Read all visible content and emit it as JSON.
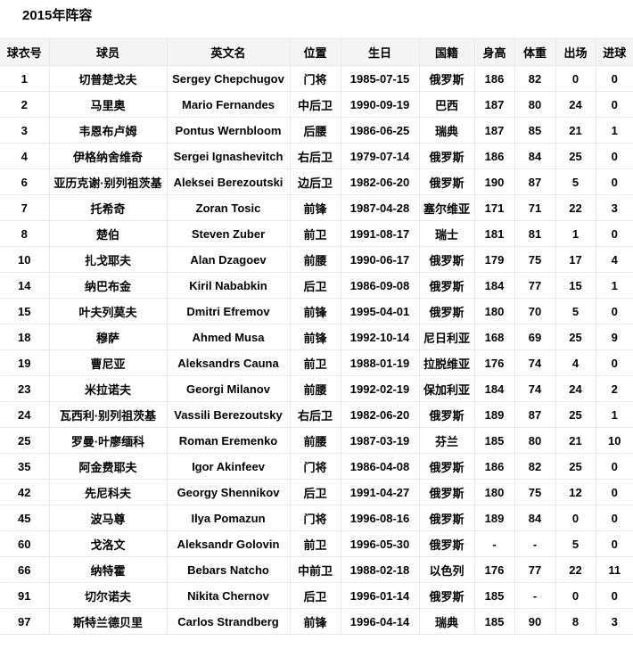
{
  "title": "2015年阵容",
  "colors": {
    "header_background": "#f4f4f4",
    "border": "#e8e8e8",
    "text": "#000000",
    "page_background": "#ffffff"
  },
  "table": {
    "columns": [
      {
        "key": "number",
        "label": "球衣号"
      },
      {
        "key": "player",
        "label": "球员"
      },
      {
        "key": "english_name",
        "label": "英文名"
      },
      {
        "key": "position",
        "label": "位置"
      },
      {
        "key": "birthday",
        "label": "生日"
      },
      {
        "key": "nationality",
        "label": "国籍"
      },
      {
        "key": "height",
        "label": "身高"
      },
      {
        "key": "weight",
        "label": "体重"
      },
      {
        "key": "appearances",
        "label": "出场"
      },
      {
        "key": "goals",
        "label": "进球"
      }
    ],
    "rows": [
      {
        "number": "1",
        "player": "切普楚戈夫",
        "english_name": "Sergey Chepchugov",
        "position": "门将",
        "birthday": "1985-07-15",
        "nationality": "俄罗斯",
        "height": "186",
        "weight": "82",
        "appearances": "0",
        "goals": "0"
      },
      {
        "number": "2",
        "player": "马里奥",
        "english_name": "Mario Fernandes",
        "position": "中后卫",
        "birthday": "1990-09-19",
        "nationality": "巴西",
        "height": "187",
        "weight": "80",
        "appearances": "24",
        "goals": "0"
      },
      {
        "number": "3",
        "player": "韦恩布卢姆",
        "english_name": "Pontus Wernbloom",
        "position": "后腰",
        "birthday": "1986-06-25",
        "nationality": "瑞典",
        "height": "187",
        "weight": "85",
        "appearances": "21",
        "goals": "1"
      },
      {
        "number": "4",
        "player": "伊格纳舍维奇",
        "english_name": "Sergei Ignashevitch",
        "position": "右后卫",
        "birthday": "1979-07-14",
        "nationality": "俄罗斯",
        "height": "186",
        "weight": "84",
        "appearances": "25",
        "goals": "0"
      },
      {
        "number": "6",
        "player": "亚历克谢·别列祖茨基",
        "english_name": "Aleksei Berezoutski",
        "position": "边后卫",
        "birthday": "1982-06-20",
        "nationality": "俄罗斯",
        "height": "190",
        "weight": "87",
        "appearances": "5",
        "goals": "0"
      },
      {
        "number": "7",
        "player": "托希奇",
        "english_name": "Zoran Tosic",
        "position": "前锋",
        "birthday": "1987-04-28",
        "nationality": "塞尔维亚",
        "height": "171",
        "weight": "71",
        "appearances": "22",
        "goals": "3"
      },
      {
        "number": "8",
        "player": "楚伯",
        "english_name": "Steven Zuber",
        "position": "前卫",
        "birthday": "1991-08-17",
        "nationality": "瑞士",
        "height": "181",
        "weight": "81",
        "appearances": "1",
        "goals": "0"
      },
      {
        "number": "10",
        "player": "扎戈耶夫",
        "english_name": "Alan Dzagoev",
        "position": "前腰",
        "birthday": "1990-06-17",
        "nationality": "俄罗斯",
        "height": "179",
        "weight": "75",
        "appearances": "17",
        "goals": "4"
      },
      {
        "number": "14",
        "player": "纳巴布金",
        "english_name": "Kiril Nababkin",
        "position": "后卫",
        "birthday": "1986-09-08",
        "nationality": "俄罗斯",
        "height": "184",
        "weight": "77",
        "appearances": "15",
        "goals": "1"
      },
      {
        "number": "15",
        "player": "叶夫列莫夫",
        "english_name": "Dmitri Efremov",
        "position": "前锋",
        "birthday": "1995-04-01",
        "nationality": "俄罗斯",
        "height": "180",
        "weight": "70",
        "appearances": "5",
        "goals": "0"
      },
      {
        "number": "18",
        "player": "穆萨",
        "english_name": "Ahmed Musa",
        "position": "前锋",
        "birthday": "1992-10-14",
        "nationality": "尼日利亚",
        "height": "168",
        "weight": "69",
        "appearances": "25",
        "goals": "9"
      },
      {
        "number": "19",
        "player": "曹尼亚",
        "english_name": "Aleksandrs Cauna",
        "position": "前卫",
        "birthday": "1988-01-19",
        "nationality": "拉脱维亚",
        "height": "176",
        "weight": "74",
        "appearances": "4",
        "goals": "0"
      },
      {
        "number": "23",
        "player": "米拉诺夫",
        "english_name": "Georgi Milanov",
        "position": "前腰",
        "birthday": "1992-02-19",
        "nationality": "保加利亚",
        "height": "184",
        "weight": "74",
        "appearances": "24",
        "goals": "2"
      },
      {
        "number": "24",
        "player": "瓦西利·别列祖茨基",
        "english_name": "Vassili Berezoutsky",
        "position": "右后卫",
        "birthday": "1982-06-20",
        "nationality": "俄罗斯",
        "height": "189",
        "weight": "87",
        "appearances": "25",
        "goals": "1"
      },
      {
        "number": "25",
        "player": "罗曼·叶廖缅科",
        "english_name": "Roman Eremenko",
        "position": "前腰",
        "birthday": "1987-03-19",
        "nationality": "芬兰",
        "height": "185",
        "weight": "80",
        "appearances": "21",
        "goals": "10"
      },
      {
        "number": "35",
        "player": "阿金费耶夫",
        "english_name": "Igor Akinfeev",
        "position": "门将",
        "birthday": "1986-04-08",
        "nationality": "俄罗斯",
        "height": "186",
        "weight": "82",
        "appearances": "25",
        "goals": "0"
      },
      {
        "number": "42",
        "player": "先尼科夫",
        "english_name": "Georgy Shennikov",
        "position": "后卫",
        "birthday": "1991-04-27",
        "nationality": "俄罗斯",
        "height": "180",
        "weight": "75",
        "appearances": "12",
        "goals": "0"
      },
      {
        "number": "45",
        "player": "波马尊",
        "english_name": "Ilya Pomazun",
        "position": "门将",
        "birthday": "1996-08-16",
        "nationality": "俄罗斯",
        "height": "189",
        "weight": "84",
        "appearances": "0",
        "goals": "0"
      },
      {
        "number": "60",
        "player": "戈洛文",
        "english_name": "Aleksandr Golovin",
        "position": "前卫",
        "birthday": "1996-05-30",
        "nationality": "俄罗斯",
        "height": "-",
        "weight": "-",
        "appearances": "5",
        "goals": "0"
      },
      {
        "number": "66",
        "player": "纳特霍",
        "english_name": "Bebars Natcho",
        "position": "中前卫",
        "birthday": "1988-02-18",
        "nationality": "以色列",
        "height": "176",
        "weight": "77",
        "appearances": "22",
        "goals": "11"
      },
      {
        "number": "91",
        "player": "切尔诺夫",
        "english_name": "Nikita Chernov",
        "position": "后卫",
        "birthday": "1996-01-14",
        "nationality": "俄罗斯",
        "height": "185",
        "weight": "-",
        "appearances": "0",
        "goals": "0"
      },
      {
        "number": "97",
        "player": "斯特兰德贝里",
        "english_name": "Carlos Strandberg",
        "position": "前锋",
        "birthday": "1996-04-14",
        "nationality": "瑞典",
        "height": "185",
        "weight": "90",
        "appearances": "8",
        "goals": "3"
      }
    ]
  }
}
